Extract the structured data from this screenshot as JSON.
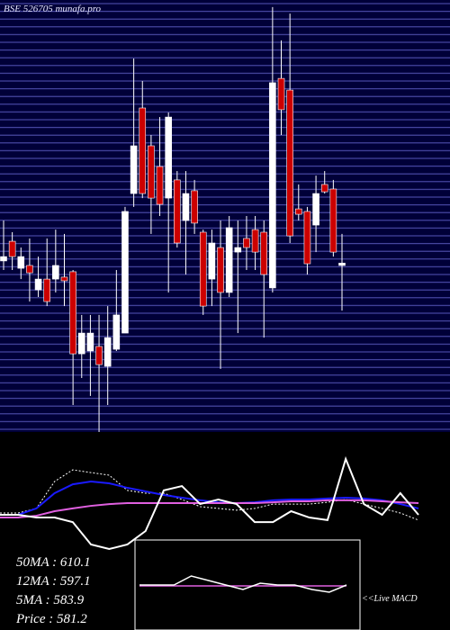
{
  "chart_data": {
    "type": "candlestick",
    "title": "BSE 526705 munafa.pro",
    "ylim": [
      503,
      703
    ],
    "up_color": "#ffffff",
    "down_color": "#cc0000",
    "open": [
      582.2,
      591.3,
      578.8,
      580.1,
      568.8,
      573.8,
      573.8,
      574.7,
      577.2,
      539.2,
      540.5,
      542.6,
      533.4,
      541.3,
      548.8,
      613.4,
      653.0,
      635.5,
      625.9,
      611.3,
      619.7,
      600.9,
      614.7,
      595.5,
      573.8,
      588.4,
      567.6,
      586.3,
      592.6,
      596.7,
      595.5,
      569.7,
      666.7,
      661.3,
      606.3,
      605.1,
      598.8,
      617.6,
      615.5,
      580.1
    ],
    "high": [
      600.9,
      595.5,
      588.4,
      592.6,
      584.2,
      592.6,
      596.7,
      594.7,
      578.0,
      557.2,
      557.2,
      557.2,
      561.3,
      578.0,
      607.2,
      675.9,
      665.5,
      640.5,
      648.8,
      650.9,
      623.8,
      623.8,
      619.7,
      596.7,
      596.7,
      600.9,
      603.0,
      600.9,
      603.0,
      603.0,
      600.9,
      699.7,
      684.3,
      696.7,
      617.6,
      607.2,
      621.7,
      623.8,
      619.7,
      594.7
    ],
    "low": [
      578.0,
      578.0,
      573.8,
      563.4,
      565.5,
      561.3,
      567.6,
      561.3,
      515.5,
      528.0,
      519.7,
      503.0,
      515.5,
      540.5,
      548.8,
      607.2,
      611.3,
      594.7,
      603.0,
      567.6,
      588.4,
      575.9,
      594.7,
      557.2,
      561.3,
      532.2,
      565.5,
      548.8,
      578.0,
      578.0,
      546.7,
      567.6,
      640.5,
      590.5,
      600.9,
      575.9,
      586.3,
      613.4,
      584.2,
      559.2
    ],
    "close": [
      584.2,
      584.2,
      584.2,
      576.7,
      573.8,
      563.4,
      580.1,
      573.0,
      539.2,
      548.8,
      548.8,
      534.2,
      546.7,
      557.2,
      605.1,
      635.5,
      613.4,
      611.3,
      608.4,
      648.8,
      590.5,
      613.4,
      599.7,
      561.3,
      590.5,
      567.6,
      597.6,
      588.4,
      588.4,
      586.3,
      575.9,
      664.7,
      652.2,
      593.8,
      603.8,
      580.9,
      613.4,
      614.2,
      586.3,
      581.2
    ],
    "ma_panel": {
      "ylim": [
        0,
        100
      ],
      "series": [
        {
          "color": "#ffffff",
          "dash": true,
          "width": 1,
          "values": [
            59.1,
            59.1,
            61.4,
            75.0,
            80.9,
            79.5,
            78.2,
            70.5,
            69.1,
            69.1,
            65.9,
            62.3,
            61.4,
            60.5,
            61.4,
            63.6,
            63.6,
            63.6,
            64.5,
            65.9,
            63.6,
            61.4,
            59.1,
            55.5
          ]
        },
        {
          "color": "#1a1aff",
          "width": 2,
          "values": [
            58.2,
            58.2,
            61.4,
            69.1,
            73.6,
            75.0,
            74.1,
            71.8,
            70.0,
            68.2,
            66.8,
            65.5,
            64.5,
            64.1,
            64.5,
            65.5,
            65.9,
            65.9,
            66.4,
            66.8,
            66.4,
            65.5,
            63.6,
            61.4
          ]
        },
        {
          "color": "#e060e0",
          "width": 2,
          "values": [
            56.8,
            56.8,
            57.7,
            60.0,
            61.4,
            62.7,
            63.6,
            64.1,
            64.1,
            64.1,
            64.1,
            64.1,
            64.1,
            64.1,
            64.1,
            64.5,
            65.0,
            65.0,
            65.5,
            65.5,
            65.5,
            65.0,
            64.5,
            64.1
          ]
        },
        {
          "color": "#ffffff",
          "width": 2,
          "values": [
            58.2,
            58.2,
            56.8,
            56.8,
            54.5,
            43.2,
            40.9,
            43.2,
            50.0,
            70.5,
            72.7,
            63.6,
            65.9,
            63.6,
            54.5,
            54.5,
            60.0,
            56.8,
            55.5,
            86.4,
            63.6,
            58.2,
            69.1,
            58.2
          ]
        }
      ]
    },
    "ma_labels": [
      "50MA : 610.1",
      "12MA : 597.1",
      "5MA : 583.9",
      "Price   : 581.2"
    ],
    "macd_panel": {
      "label": "<<Live MACD",
      "ylim": [
        0,
        100
      ],
      "series": [
        {
          "color": "#e060e0",
          "width": 1.5,
          "values": [
            49,
            49,
            49,
            49,
            49,
            49,
            49,
            49,
            49,
            49,
            49,
            49,
            49
          ]
        },
        {
          "color": "#ffffff",
          "width": 1.5,
          "values": [
            50,
            50,
            50,
            60,
            55,
            50,
            45,
            52,
            50,
            50,
            45,
            42,
            50
          ]
        }
      ]
    }
  }
}
